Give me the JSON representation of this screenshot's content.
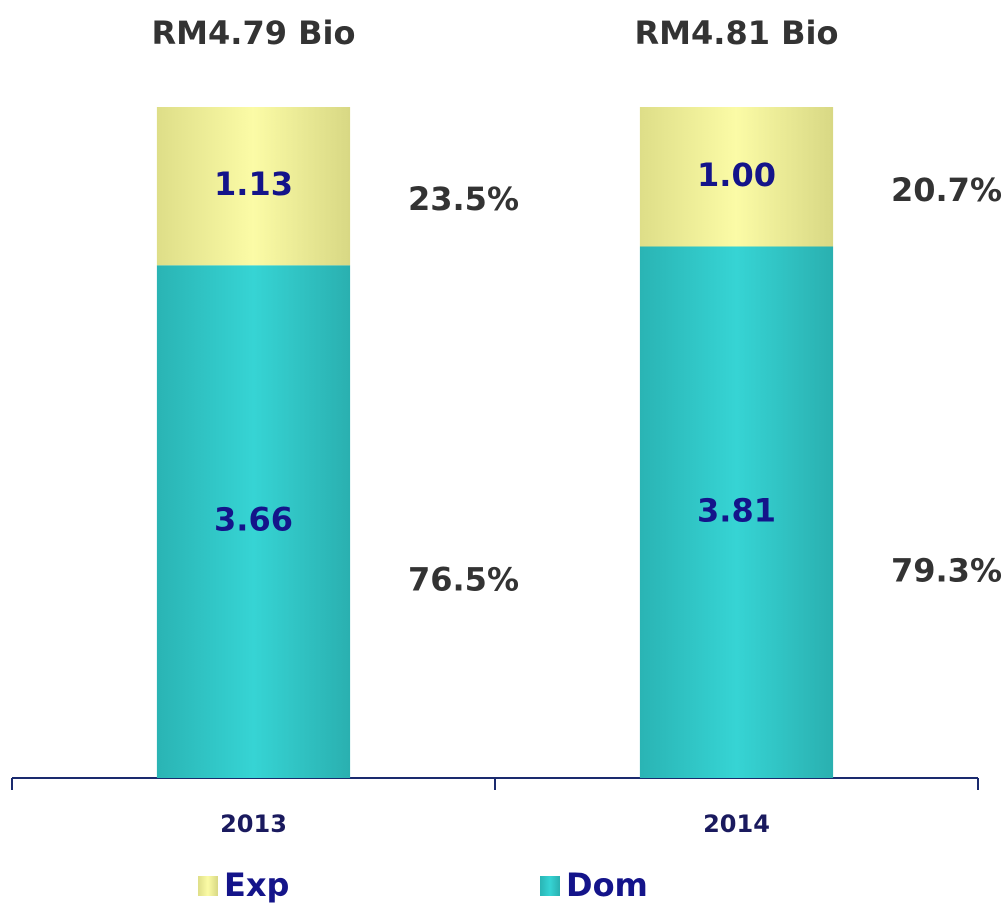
{
  "chart_data": {
    "type": "bar",
    "stacked": true,
    "categories": [
      "2013",
      "2014"
    ],
    "totals": [
      "RM4.79 Bio",
      "RM4.81 Bio"
    ],
    "series": [
      {
        "name": "Dom",
        "color": "#30c8c8",
        "values": [
          3.66,
          3.81
        ],
        "share_labels": [
          "76.5%",
          "79.3%"
        ]
      },
      {
        "name": "Exp",
        "color": "#eeee99",
        "values": [
          1.13,
          1.0
        ],
        "value_labels": [
          "1.13",
          "1.00"
        ],
        "share_labels": [
          "23.5%",
          "20.7%"
        ]
      }
    ]
  }
}
